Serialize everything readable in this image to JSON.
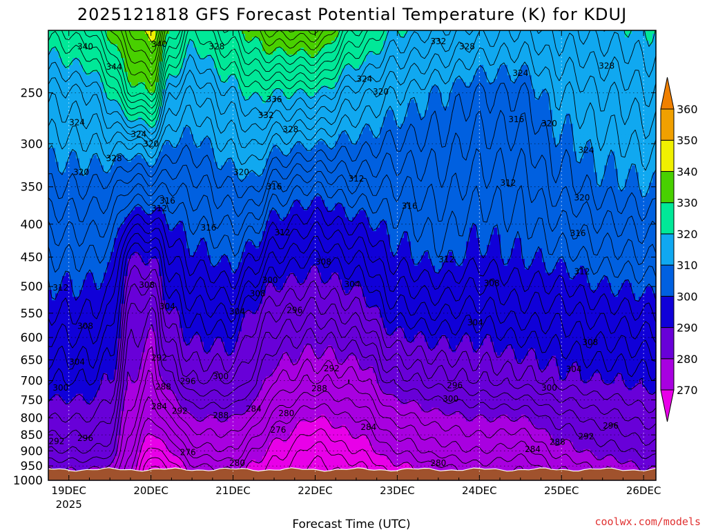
{
  "chart_data": {
    "type": "heatmap",
    "title": "2025121818 GFS Forecast Potential Temperature (K) for KDUJ",
    "xlabel": "Forecast Time (UTC)",
    "ylabel": "",
    "credit": "coolwx.com/models",
    "x_ticks": [
      "19DEC",
      "20DEC",
      "21DEC",
      "22DEC",
      "23DEC",
      "24DEC",
      "25DEC",
      "26DEC"
    ],
    "x_ticks_sub": [
      "2025",
      "",
      "",
      "",
      "",
      "",
      "",
      ""
    ],
    "xlim": [
      -0.25,
      7.15
    ],
    "y_ticks": [
      250,
      300,
      350,
      400,
      450,
      500,
      550,
      600,
      650,
      700,
      750,
      800,
      850,
      900,
      950,
      1000
    ],
    "ylim": [
      1000,
      200
    ],
    "y_scale": "log-pressure",
    "grid": "dotted",
    "colorbar": {
      "levels": [
        270,
        280,
        290,
        300,
        310,
        320,
        330,
        340,
        350,
        360
      ],
      "labels": [
        "270",
        "280",
        "290",
        "300",
        "310",
        "320",
        "330",
        "340",
        "350",
        "360"
      ],
      "colors": [
        "#e800e8",
        "#a800e0",
        "#6800d8",
        "#1000d8",
        "#0060e0",
        "#10a8f0",
        "#00e898",
        "#48d000",
        "#f0f000",
        "#f0a000"
      ],
      "placement": "right"
    },
    "surface_pressure_hpa": 962,
    "ground_color": "#a0522d",
    "profiles": [
      {
        "t": -0.25,
        "p": [
          [
            962,
            290
          ],
          [
            900,
            294
          ],
          [
            800,
            298
          ],
          [
            700,
            302
          ],
          [
            550,
            308
          ],
          [
            450,
            312
          ],
          [
            350,
            318
          ],
          [
            250,
            325
          ],
          [
            200,
            333
          ]
        ]
      },
      {
        "t": 0.25,
        "p": [
          [
            962,
            290
          ],
          [
            900,
            294
          ],
          [
            800,
            298
          ],
          [
            700,
            302
          ],
          [
            550,
            308
          ],
          [
            450,
            312
          ],
          [
            350,
            318
          ],
          [
            250,
            326
          ],
          [
            200,
            336
          ]
        ]
      },
      {
        "t": 0.5,
        "p": [
          [
            962,
            289
          ],
          [
            900,
            293
          ],
          [
            800,
            296
          ],
          [
            700,
            300
          ],
          [
            550,
            306
          ],
          [
            450,
            311
          ],
          [
            350,
            317
          ],
          [
            250,
            330
          ],
          [
            200,
            341
          ]
        ]
      },
      {
        "t": 0.75,
        "p": [
          [
            962,
            282
          ],
          [
            900,
            284
          ],
          [
            800,
            287
          ],
          [
            700,
            290
          ],
          [
            550,
            294
          ],
          [
            450,
            300
          ],
          [
            380,
            310
          ],
          [
            300,
            322
          ],
          [
            250,
            338
          ],
          [
            200,
            348
          ]
        ]
      },
      {
        "t": 1.0,
        "p": [
          [
            962,
            273
          ],
          [
            900,
            277
          ],
          [
            800,
            282
          ],
          [
            700,
            286
          ],
          [
            550,
            292
          ],
          [
            450,
            300
          ],
          [
            380,
            310
          ],
          [
            300,
            324
          ],
          [
            250,
            340
          ],
          [
            200,
            352
          ]
        ]
      },
      {
        "t": 1.25,
        "p": [
          [
            962,
            276
          ],
          [
            900,
            280
          ],
          [
            800,
            286
          ],
          [
            700,
            292
          ],
          [
            550,
            300
          ],
          [
            450,
            306
          ],
          [
            350,
            314
          ],
          [
            250,
            326
          ],
          [
            200,
            340
          ]
        ]
      },
      {
        "t": 1.5,
        "p": [
          [
            962,
            281
          ],
          [
            900,
            285
          ],
          [
            800,
            290
          ],
          [
            700,
            296
          ],
          [
            550,
            303
          ],
          [
            450,
            309
          ],
          [
            350,
            315
          ],
          [
            250,
            324
          ],
          [
            200,
            332
          ]
        ]
      },
      {
        "t": 2.0,
        "p": [
          [
            962,
            282
          ],
          [
            900,
            286
          ],
          [
            800,
            290
          ],
          [
            700,
            296
          ],
          [
            550,
            304
          ],
          [
            450,
            311
          ],
          [
            350,
            318
          ],
          [
            250,
            328
          ],
          [
            200,
            338
          ]
        ]
      },
      {
        "t": 2.25,
        "p": [
          [
            962,
            279
          ],
          [
            900,
            282
          ],
          [
            800,
            288
          ],
          [
            700,
            293
          ],
          [
            550,
            299
          ],
          [
            450,
            308
          ],
          [
            350,
            319
          ],
          [
            250,
            331
          ],
          [
            200,
            342
          ]
        ]
      },
      {
        "t": 2.5,
        "p": [
          [
            962,
            277
          ],
          [
            900,
            279
          ],
          [
            800,
            283
          ],
          [
            700,
            288
          ],
          [
            550,
            296
          ],
          [
            450,
            304
          ],
          [
            350,
            314
          ],
          [
            250,
            330
          ],
          [
            200,
            345
          ]
        ]
      },
      {
        "t": 3.0,
        "p": [
          [
            962,
            273
          ],
          [
            900,
            275
          ],
          [
            800,
            280
          ],
          [
            700,
            286
          ],
          [
            550,
            295
          ],
          [
            450,
            302
          ],
          [
            350,
            312
          ],
          [
            250,
            330
          ],
          [
            200,
            346
          ]
        ]
      },
      {
        "t": 3.5,
        "p": [
          [
            962,
            275
          ],
          [
            900,
            278
          ],
          [
            800,
            282
          ],
          [
            700,
            287
          ],
          [
            550,
            297
          ],
          [
            450,
            304
          ],
          [
            350,
            314
          ],
          [
            250,
            325
          ],
          [
            200,
            336
          ]
        ]
      },
      {
        "t": 4.0,
        "p": [
          [
            962,
            279
          ],
          [
            900,
            282
          ],
          [
            800,
            287
          ],
          [
            700,
            293
          ],
          [
            550,
            303
          ],
          [
            450,
            309
          ],
          [
            350,
            314
          ],
          [
            250,
            322
          ],
          [
            200,
            330
          ]
        ]
      },
      {
        "t": 4.5,
        "p": [
          [
            962,
            281
          ],
          [
            900,
            285
          ],
          [
            800,
            289
          ],
          [
            700,
            295
          ],
          [
            550,
            304
          ],
          [
            450,
            311
          ],
          [
            350,
            315
          ],
          [
            250,
            320
          ],
          [
            200,
            328
          ]
        ]
      },
      {
        "t": 5.0,
        "p": [
          [
            962,
            283
          ],
          [
            900,
            286
          ],
          [
            800,
            290
          ],
          [
            700,
            296
          ],
          [
            550,
            303
          ],
          [
            450,
            309
          ],
          [
            350,
            313
          ],
          [
            250,
            318
          ],
          [
            200,
            325
          ]
        ]
      },
      {
        "t": 5.5,
        "p": [
          [
            962,
            282
          ],
          [
            900,
            285
          ],
          [
            800,
            290
          ],
          [
            700,
            297
          ],
          [
            550,
            305
          ],
          [
            450,
            310
          ],
          [
            350,
            313
          ],
          [
            250,
            318
          ],
          [
            200,
            324
          ]
        ]
      },
      {
        "t": 6.0,
        "p": [
          [
            962,
            286
          ],
          [
            900,
            289
          ],
          [
            800,
            293
          ],
          [
            700,
            299
          ],
          [
            550,
            305
          ],
          [
            450,
            311
          ],
          [
            350,
            317
          ],
          [
            250,
            322
          ],
          [
            200,
            327
          ]
        ]
      },
      {
        "t": 6.5,
        "p": [
          [
            962,
            288
          ],
          [
            900,
            291
          ],
          [
            800,
            295
          ],
          [
            700,
            300
          ],
          [
            550,
            307
          ],
          [
            450,
            313
          ],
          [
            350,
            319
          ],
          [
            250,
            324
          ],
          [
            200,
            329
          ]
        ]
      },
      {
        "t": 7.15,
        "p": [
          [
            962,
            290
          ],
          [
            900,
            293
          ],
          [
            800,
            297
          ],
          [
            700,
            301
          ],
          [
            550,
            308
          ],
          [
            450,
            314
          ],
          [
            350,
            320
          ],
          [
            250,
            326
          ],
          [
            200,
            330
          ]
        ]
      }
    ],
    "contour_labels": [
      {
        "t": 0.2,
        "p": 212,
        "text": "340"
      },
      {
        "t": 0.55,
        "p": 228,
        "text": "344"
      },
      {
        "t": 0.1,
        "p": 278,
        "text": "324"
      },
      {
        "t": 0.85,
        "p": 290,
        "text": "324"
      },
      {
        "t": 0.55,
        "p": 316,
        "text": "328"
      },
      {
        "t": 1.0,
        "p": 300,
        "text": "320"
      },
      {
        "t": 0.15,
        "p": 332,
        "text": "320"
      },
      {
        "t": 1.2,
        "p": 368,
        "text": "316"
      },
      {
        "t": 1.1,
        "p": 378,
        "text": "312"
      },
      {
        "t": 1.1,
        "p": 210,
        "text": "340"
      },
      {
        "t": 1.8,
        "p": 212,
        "text": "328"
      },
      {
        "t": 2.5,
        "p": 256,
        "text": "336"
      },
      {
        "t": 2.4,
        "p": 271,
        "text": "332"
      },
      {
        "t": 2.7,
        "p": 285,
        "text": "328"
      },
      {
        "t": 2.1,
        "p": 332,
        "text": "320"
      },
      {
        "t": 2.5,
        "p": 350,
        "text": "316"
      },
      {
        "t": 3.5,
        "p": 340,
        "text": "312"
      },
      {
        "t": 1.7,
        "p": 405,
        "text": "316"
      },
      {
        "t": 2.6,
        "p": 412,
        "text": "312"
      },
      {
        "t": 3.6,
        "p": 238,
        "text": "324"
      },
      {
        "t": 3.8,
        "p": 249,
        "text": "320"
      },
      {
        "t": 4.15,
        "p": 375,
        "text": "316"
      },
      {
        "t": 5.45,
        "p": 275,
        "text": "316"
      },
      {
        "t": 5.85,
        "p": 279,
        "text": "320"
      },
      {
        "t": 6.3,
        "p": 307,
        "text": "324"
      },
      {
        "t": 6.55,
        "p": 227,
        "text": "328"
      },
      {
        "t": 5.5,
        "p": 233,
        "text": "324"
      },
      {
        "t": 4.85,
        "p": 212,
        "text": "328"
      },
      {
        "t": 4.5,
        "p": 208,
        "text": "332"
      },
      {
        "t": 5.35,
        "p": 345,
        "text": "312"
      },
      {
        "t": 6.25,
        "p": 364,
        "text": "320"
      },
      {
        "t": 6.2,
        "p": 413,
        "text": "316"
      },
      {
        "t": 6.25,
        "p": 474,
        "text": "312"
      },
      {
        "t": 4.6,
        "p": 454,
        "text": "312"
      },
      {
        "t": 3.1,
        "p": 458,
        "text": "308"
      },
      {
        "t": -0.1,
        "p": 502,
        "text": "312"
      },
      {
        "t": 0.95,
        "p": 497,
        "text": "308"
      },
      {
        "t": 1.2,
        "p": 537,
        "text": "304"
      },
      {
        "t": 2.3,
        "p": 513,
        "text": "308"
      },
      {
        "t": 2.05,
        "p": 547,
        "text": "304"
      },
      {
        "t": 2.45,
        "p": 489,
        "text": "300"
      },
      {
        "t": 2.75,
        "p": 544,
        "text": "296"
      },
      {
        "t": 3.45,
        "p": 496,
        "text": "304"
      },
      {
        "t": 5.15,
        "p": 494,
        "text": "308"
      },
      {
        "t": 4.95,
        "p": 569,
        "text": "304"
      },
      {
        "t": 6.35,
        "p": 610,
        "text": "308"
      },
      {
        "t": 6.15,
        "p": 672,
        "text": "304"
      },
      {
        "t": 5.85,
        "p": 718,
        "text": "300"
      },
      {
        "t": 0.2,
        "p": 576,
        "text": "308"
      },
      {
        "t": 0.1,
        "p": 655,
        "text": "304"
      },
      {
        "t": -0.1,
        "p": 718,
        "text": "300"
      },
      {
        "t": 1.1,
        "p": 645,
        "text": "292"
      },
      {
        "t": 1.15,
        "p": 716,
        "text": "288"
      },
      {
        "t": 1.45,
        "p": 702,
        "text": "296"
      },
      {
        "t": 1.85,
        "p": 690,
        "text": "300"
      },
      {
        "t": 1.1,
        "p": 768,
        "text": "284"
      },
      {
        "t": 3.2,
        "p": 670,
        "text": "292"
      },
      {
        "t": 3.05,
        "p": 720,
        "text": "288"
      },
      {
        "t": 2.25,
        "p": 775,
        "text": "284"
      },
      {
        "t": 2.65,
        "p": 787,
        "text": "280"
      },
      {
        "t": 2.55,
        "p": 835,
        "text": "276"
      },
      {
        "t": 3.65,
        "p": 827,
        "text": "284"
      },
      {
        "t": 4.65,
        "p": 747,
        "text": "300"
      },
      {
        "t": 4.7,
        "p": 712,
        "text": "296"
      },
      {
        "t": 1.45,
        "p": 905,
        "text": "276"
      },
      {
        "t": 2.05,
        "p": 940,
        "text": "280"
      },
      {
        "t": 4.5,
        "p": 940,
        "text": "280"
      },
      {
        "t": 5.65,
        "p": 895,
        "text": "284"
      },
      {
        "t": 5.95,
        "p": 872,
        "text": "288"
      },
      {
        "t": 6.3,
        "p": 855,
        "text": "292"
      },
      {
        "t": 6.6,
        "p": 823,
        "text": "296"
      },
      {
        "t": 1.35,
        "p": 780,
        "text": "292"
      },
      {
        "t": 1.85,
        "p": 793,
        "text": "288"
      },
      {
        "t": -0.15,
        "p": 870,
        "text": "292"
      },
      {
        "t": 0.2,
        "p": 860,
        "text": "296"
      }
    ],
    "isotherm_interval_k": 2
  }
}
